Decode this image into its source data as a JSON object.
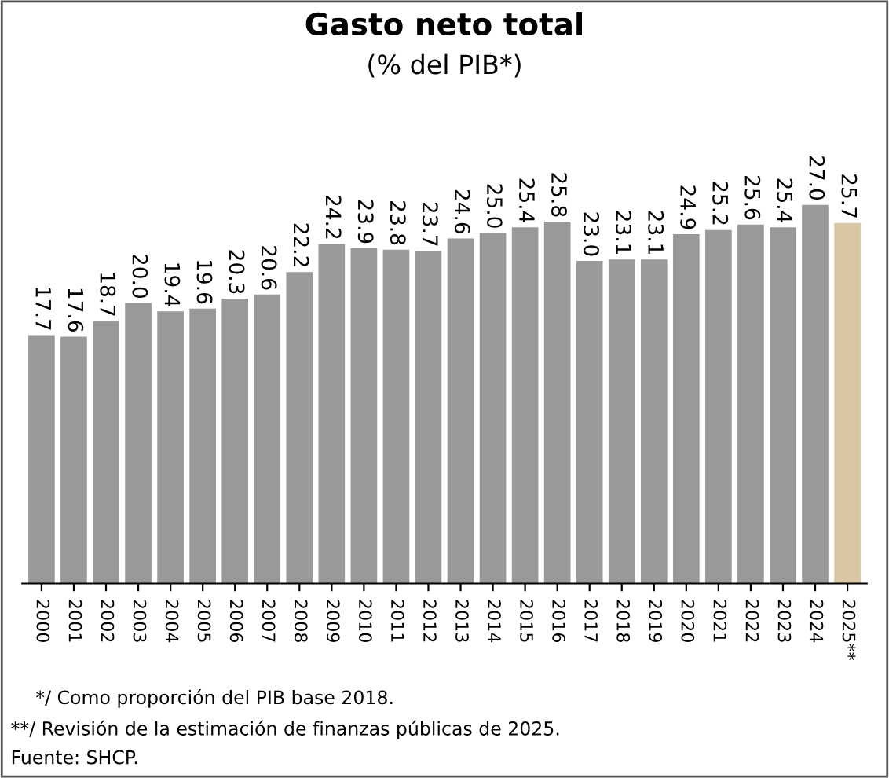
{
  "chart_data": {
    "type": "bar",
    "title": "Gasto neto total",
    "subtitle": "(% del PIB*)",
    "categories": [
      "2000",
      "2001",
      "2002",
      "2003",
      "2004",
      "2005",
      "2006",
      "2007",
      "2008",
      "2009",
      "2010",
      "2011",
      "2012",
      "2013",
      "2014",
      "2015",
      "2016",
      "2017",
      "2018",
      "2019",
      "2020",
      "2021",
      "2022",
      "2023",
      "2024",
      "2025**"
    ],
    "values": [
      17.7,
      17.6,
      18.7,
      20.0,
      19.4,
      19.6,
      20.3,
      20.6,
      22.2,
      24.2,
      23.9,
      23.8,
      23.7,
      24.6,
      25.0,
      25.4,
      25.8,
      23.0,
      23.1,
      23.1,
      24.9,
      25.2,
      25.6,
      25.4,
      27.0,
      25.7
    ],
    "value_labels": [
      "17.7",
      "17.6",
      "18.7",
      "20.0",
      "19.4",
      "19.6",
      "20.3",
      "20.6",
      "22.2",
      "24.2",
      "23.9",
      "23.8",
      "23.7",
      "24.6",
      "25.0",
      "25.4",
      "25.8",
      "23.0",
      "23.1",
      "23.1",
      "24.9",
      "25.2",
      "25.6",
      "25.4",
      "27.0",
      "25.7"
    ],
    "colors": [
      "#999999",
      "#999999",
      "#999999",
      "#999999",
      "#999999",
      "#999999",
      "#999999",
      "#999999",
      "#999999",
      "#999999",
      "#999999",
      "#999999",
      "#999999",
      "#999999",
      "#999999",
      "#999999",
      "#999999",
      "#999999",
      "#999999",
      "#999999",
      "#999999",
      "#999999",
      "#999999",
      "#999999",
      "#999999",
      "#d9c6a3"
    ],
    "annotations": [
      "*/ Como proporción del PIB base 2018.",
      "**/ Revisión de la estimación de finanzas públicas de 2025.",
      "Fuente: SHCP."
    ],
    "tick_labels": "x",
    "grid": false,
    "legend": false
  }
}
